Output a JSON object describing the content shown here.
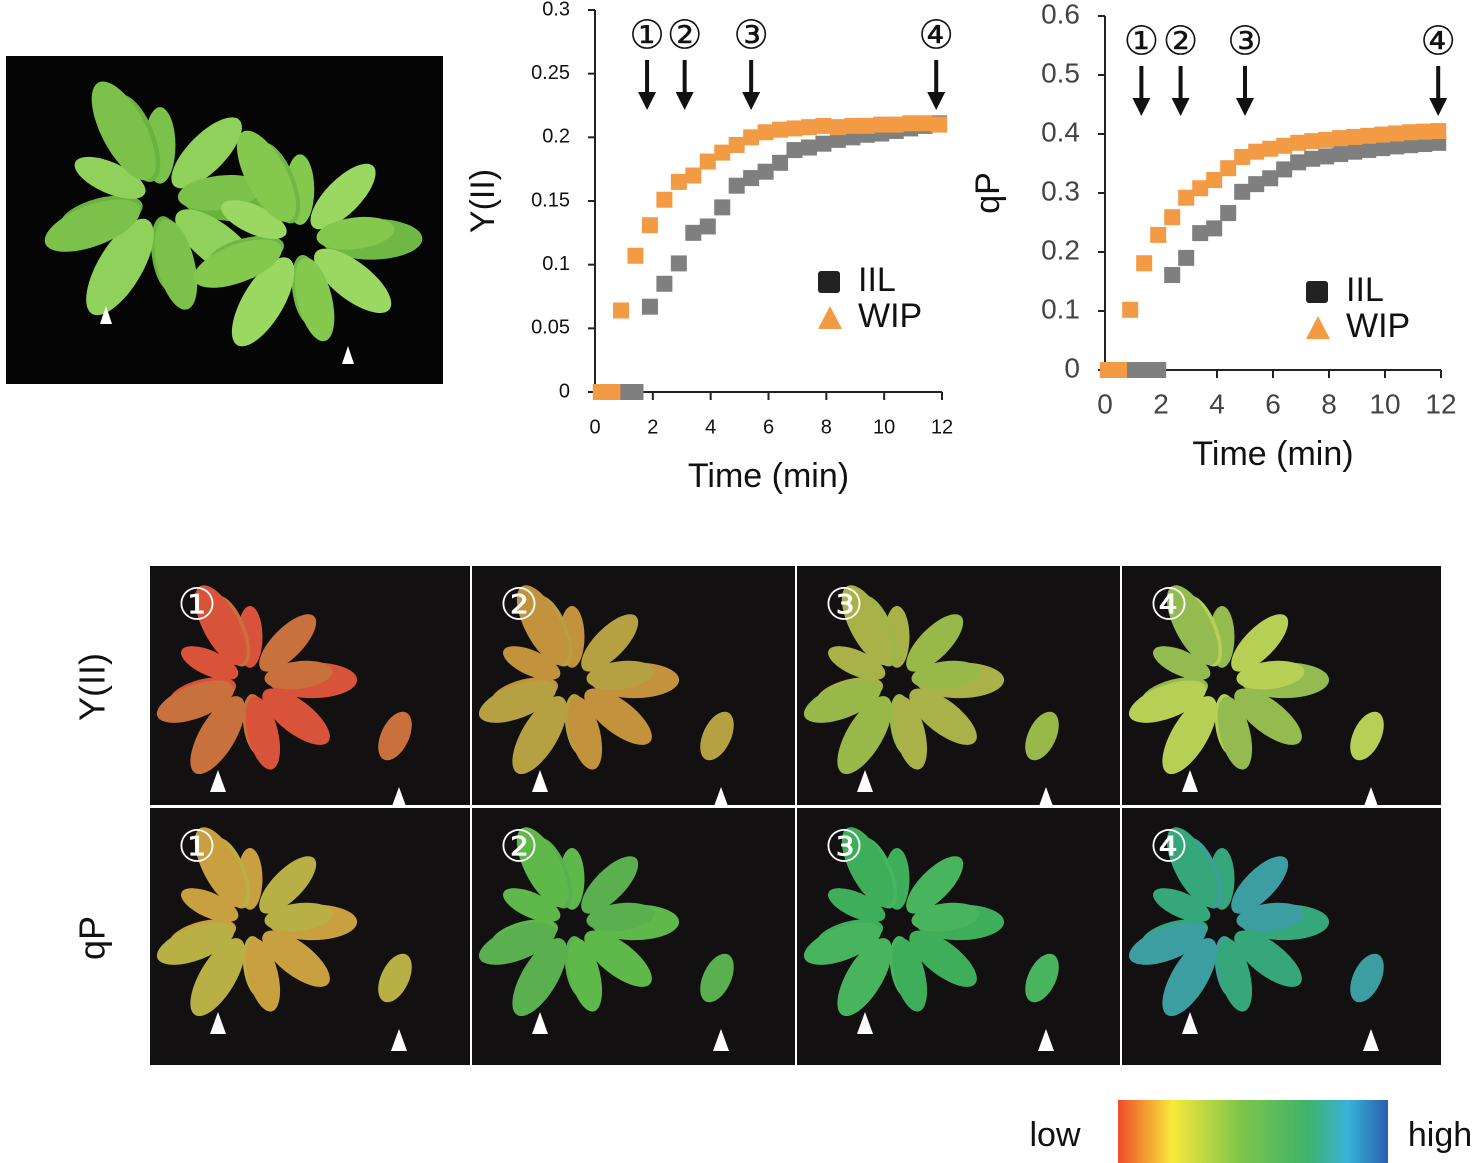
{
  "chart_data": [
    {
      "type": "scatter",
      "xlabel": "Time (min)",
      "ylabel": "Y(II)",
      "xlim": [
        0,
        12
      ],
      "xticks": [
        0,
        2,
        4,
        6,
        8,
        10,
        12
      ],
      "ylim": [
        0,
        0.3
      ],
      "yticks": [
        0,
        0.05,
        0.1,
        0.15,
        0.2,
        0.25,
        0.3
      ],
      "annotations": [
        {
          "text": "①",
          "x": 1.8
        },
        {
          "text": "②",
          "x": 3.1
        },
        {
          "text": "③",
          "x": 5.4
        },
        {
          "text": "④",
          "x": 11.8
        }
      ],
      "series": [
        {
          "name": "IIL",
          "color": "#7f7f7f",
          "x": [
            0.9,
            1.4,
            1.9,
            2.4,
            2.9,
            3.4,
            3.9,
            4.4,
            4.9,
            5.4,
            5.9,
            6.4,
            6.9,
            7.4,
            7.9,
            8.4,
            8.9,
            9.4,
            9.9,
            10.4,
            10.9,
            11.4,
            11.9
          ],
          "values": [
            0,
            0,
            0.067,
            0.085,
            0.101,
            0.125,
            0.13,
            0.145,
            0.162,
            0.168,
            0.173,
            0.18,
            0.19,
            0.192,
            0.195,
            0.198,
            0.2,
            0.202,
            0.203,
            0.205,
            0.207,
            0.209,
            0.211
          ]
        },
        {
          "name": "WIP",
          "color": "#f39a45",
          "x": [
            0.2,
            0.6,
            0.9,
            1.4,
            1.9,
            2.4,
            2.9,
            3.4,
            3.9,
            4.4,
            4.9,
            5.4,
            5.9,
            6.4,
            6.9,
            7.4,
            7.9,
            8.4,
            8.9,
            9.4,
            9.9,
            10.4,
            10.9,
            11.4,
            11.9
          ],
          "values": [
            0,
            0,
            0.064,
            0.107,
            0.131,
            0.151,
            0.165,
            0.17,
            0.181,
            0.188,
            0.194,
            0.2,
            0.204,
            0.206,
            0.207,
            0.208,
            0.209,
            0.208,
            0.209,
            0.209,
            0.21,
            0.21,
            0.211,
            0.211,
            0.21
          ]
        }
      ]
    },
    {
      "type": "scatter",
      "xlabel": "Time (min)",
      "ylabel": "qP",
      "xlim": [
        0,
        12
      ],
      "xticks": [
        0,
        2,
        4,
        6,
        8,
        10,
        12
      ],
      "ylim": [
        0,
        0.6
      ],
      "yticks": [
        0,
        0.1,
        0.2,
        0.3,
        0.4,
        0.5,
        0.6
      ],
      "annotations": [
        {
          "text": "①",
          "x": 1.3
        },
        {
          "text": "②",
          "x": 2.7
        },
        {
          "text": "③",
          "x": 5.0
        },
        {
          "text": "④",
          "x": 11.9
        }
      ],
      "series": [
        {
          "name": "IIL",
          "color": "#7f7f7f",
          "x": [
            0.9,
            1.4,
            1.9,
            2.4,
            2.9,
            3.4,
            3.9,
            4.4,
            4.9,
            5.4,
            5.9,
            6.4,
            6.9,
            7.4,
            7.9,
            8.4,
            8.9,
            9.4,
            9.9,
            10.4,
            10.9,
            11.4,
            11.9
          ],
          "values": [
            0,
            0,
            0,
            0.161,
            0.19,
            0.232,
            0.24,
            0.266,
            0.302,
            0.315,
            0.325,
            0.34,
            0.352,
            0.358,
            0.362,
            0.366,
            0.37,
            0.373,
            0.376,
            0.379,
            0.381,
            0.383,
            0.385
          ]
        },
        {
          "name": "WIP",
          "color": "#f39a45",
          "x": [
            0.1,
            0.5,
            0.9,
            1.4,
            1.9,
            2.4,
            2.9,
            3.4,
            3.9,
            4.4,
            4.9,
            5.4,
            5.9,
            6.4,
            6.9,
            7.4,
            7.9,
            8.4,
            8.9,
            9.4,
            9.9,
            10.4,
            10.9,
            11.4,
            11.9
          ],
          "values": [
            0,
            0,
            0.102,
            0.181,
            0.229,
            0.259,
            0.292,
            0.308,
            0.322,
            0.342,
            0.361,
            0.37,
            0.375,
            0.38,
            0.385,
            0.388,
            0.39,
            0.393,
            0.395,
            0.397,
            0.399,
            0.401,
            0.403,
            0.404,
            0.405
          ]
        }
      ]
    }
  ],
  "panels": {
    "row_labels": [
      "Y(II)",
      "qP"
    ],
    "column_labels": [
      "①",
      "②",
      "③",
      "④"
    ]
  },
  "colorbar": {
    "low": "low",
    "high": "high"
  }
}
